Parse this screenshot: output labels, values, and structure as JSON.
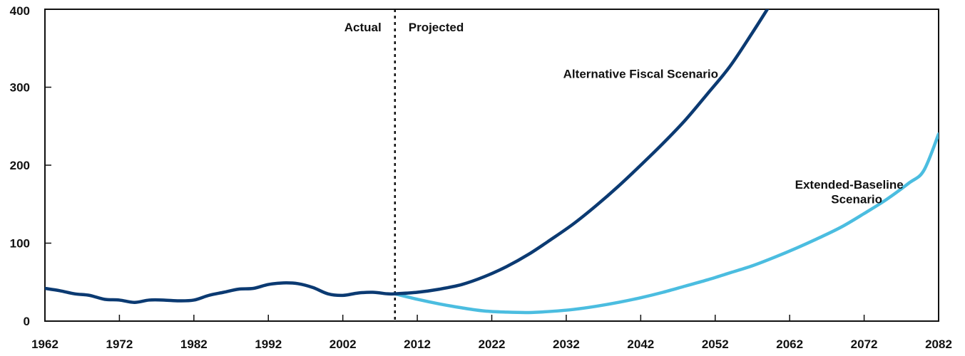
{
  "chart_data": {
    "type": "line",
    "title": "",
    "xlabel": "",
    "ylabel": "",
    "xlim": [
      1962,
      2082
    ],
    "ylim": [
      0,
      400
    ],
    "x_ticks": [
      "1962",
      "1972",
      "1982",
      "1992",
      "2002",
      "2012",
      "2022",
      "2032",
      "2042",
      "2052",
      "2062",
      "2072",
      "2082"
    ],
    "y_ticks": [
      "0",
      "100",
      "200",
      "300",
      "400"
    ],
    "grid": false,
    "divider": {
      "x": 2009,
      "left_label": "Actual",
      "right_label": "Projected"
    },
    "series": [
      {
        "name": "",
        "color": "#0b3a72",
        "points": [
          [
            1962,
            42
          ],
          [
            1964,
            39
          ],
          [
            1966,
            35
          ],
          [
            1968,
            33
          ],
          [
            1970,
            28
          ],
          [
            1972,
            27
          ],
          [
            1974,
            24
          ],
          [
            1976,
            27
          ],
          [
            1978,
            27
          ],
          [
            1980,
            26
          ],
          [
            1982,
            27
          ],
          [
            1984,
            33
          ],
          [
            1986,
            37
          ],
          [
            1988,
            41
          ],
          [
            1990,
            42
          ],
          [
            1992,
            47
          ],
          [
            1994,
            49
          ],
          [
            1996,
            48
          ],
          [
            1998,
            43
          ],
          [
            2000,
            35
          ],
          [
            2002,
            33
          ],
          [
            2004,
            36
          ],
          [
            2006,
            37
          ],
          [
            2008,
            35
          ],
          [
            2009,
            35
          ]
        ]
      },
      {
        "name": "Alternative Fiscal Scenario",
        "color": "#0b3a72",
        "points": [
          [
            2009,
            35
          ],
          [
            2012,
            37
          ],
          [
            2015,
            41
          ],
          [
            2018,
            47
          ],
          [
            2021,
            57
          ],
          [
            2024,
            70
          ],
          [
            2027,
            86
          ],
          [
            2030,
            105
          ],
          [
            2033,
            125
          ],
          [
            2036,
            148
          ],
          [
            2039,
            173
          ],
          [
            2042,
            200
          ],
          [
            2045,
            228
          ],
          [
            2048,
            258
          ],
          [
            2051,
            292
          ],
          [
            2054,
            327
          ],
          [
            2057,
            370
          ],
          [
            2059,
            400
          ]
        ]
      },
      {
        "name": "Extended-Baseline Scenario",
        "color": "#4bbde0",
        "points": [
          [
            2009,
            35
          ],
          [
            2012,
            28
          ],
          [
            2015,
            22
          ],
          [
            2018,
            17
          ],
          [
            2021,
            13
          ],
          [
            2024,
            11.5
          ],
          [
            2027,
            11
          ],
          [
            2030,
            12.5
          ],
          [
            2033,
            15
          ],
          [
            2036,
            19
          ],
          [
            2039,
            24
          ],
          [
            2042,
            30
          ],
          [
            2045,
            37
          ],
          [
            2048,
            45
          ],
          [
            2051,
            53
          ],
          [
            2054,
            62
          ],
          [
            2057,
            71
          ],
          [
            2060,
            82
          ],
          [
            2063,
            94
          ],
          [
            2066,
            107
          ],
          [
            2069,
            121
          ],
          [
            2072,
            138
          ],
          [
            2075,
            156
          ],
          [
            2078,
            177
          ],
          [
            2080,
            193
          ],
          [
            2082,
            240
          ]
        ]
      }
    ],
    "annotations": [
      {
        "text": "Alternative Fiscal Scenario",
        "at": [
          2042,
          312
        ],
        "anchor": "middle"
      },
      {
        "text": "Extended-Baseline",
        "at": [
          2070,
          170
        ],
        "anchor": "middle"
      },
      {
        "text": "Scenario",
        "at": [
          2071,
          151
        ],
        "anchor": "middle"
      }
    ]
  }
}
